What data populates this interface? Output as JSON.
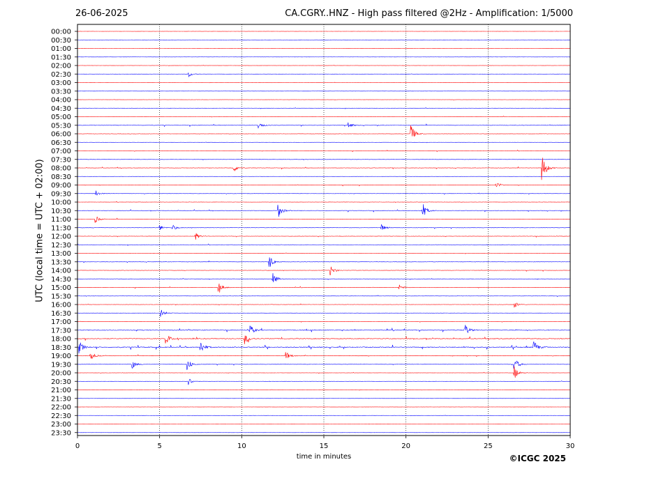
{
  "header": {
    "date": "26-06-2025",
    "title": "CA.CGRY..HNZ - High pass filtered @2Hz - Amplification: 1/5000"
  },
  "footer": {
    "copyright": "©ICGC 2025"
  },
  "chart_data": {
    "type": "line",
    "xlabel": "time in minutes",
    "ylabel": "UTC (local time = UTC + 02:00)",
    "xlim": [
      0,
      30
    ],
    "x_ticks": [
      0,
      5,
      10,
      15,
      20,
      25,
      30
    ],
    "grid": "vertical dotted lines every 5 minutes",
    "trace_colors": [
      "#ff0000",
      "#0000ff"
    ],
    "rows": [
      "00:00",
      "00:30",
      "01:00",
      "01:30",
      "02:00",
      "02:30",
      "03:00",
      "03:30",
      "04:00",
      "04:30",
      "05:00",
      "05:30",
      "06:00",
      "06:30",
      "07:00",
      "07:30",
      "08:00",
      "08:30",
      "09:00",
      "09:30",
      "10:00",
      "10:30",
      "11:00",
      "11:30",
      "12:00",
      "12:30",
      "13:00",
      "13:30",
      "14:00",
      "14:30",
      "15:00",
      "15:30",
      "16:00",
      "16:30",
      "17:00",
      "17:30",
      "18:00",
      "18:30",
      "19:00",
      "19:30",
      "20:00",
      "20:30",
      "21:00",
      "21:30",
      "22:00",
      "22:30",
      "23:00",
      "23:30"
    ],
    "activity": [
      0.2,
      0.2,
      0.2,
      0.2,
      0.3,
      0.3,
      0.3,
      0.4,
      0.5,
      0.5,
      0.6,
      1.0,
      0.7,
      0.5,
      0.7,
      0.8,
      0.9,
      0.5,
      0.8,
      0.6,
      0.6,
      1.0,
      0.8,
      0.8,
      0.8,
      0.7,
      0.5,
      0.8,
      0.8,
      0.9,
      0.8,
      0.6,
      0.6,
      0.6,
      0.7,
      1.6,
      1.8,
      2.0,
      1.2,
      0.8,
      0.5,
      0.5,
      0.4,
      0.4,
      0.3,
      0.3,
      0.2,
      0.2
    ],
    "events": [
      {
        "row": "02:30",
        "t": 6.8,
        "amp": 4
      },
      {
        "row": "05:30",
        "t": 11.0,
        "amp": 6
      },
      {
        "row": "05:30",
        "t": 16.5,
        "amp": 5
      },
      {
        "row": "06:00",
        "t": 20.3,
        "amp": 14
      },
      {
        "row": "08:00",
        "t": 9.5,
        "amp": 6
      },
      {
        "row": "08:00",
        "t": 28.3,
        "amp": 20
      },
      {
        "row": "09:00",
        "t": 25.5,
        "amp": 5
      },
      {
        "row": "09:30",
        "t": 1.1,
        "amp": 5
      },
      {
        "row": "10:30",
        "t": 12.2,
        "amp": 12
      },
      {
        "row": "10:30",
        "t": 21.0,
        "amp": 12
      },
      {
        "row": "11:00",
        "t": 1.1,
        "amp": 5
      },
      {
        "row": "11:30",
        "t": 5.0,
        "amp": 4
      },
      {
        "row": "11:30",
        "t": 5.8,
        "amp": 4
      },
      {
        "row": "11:30",
        "t": 18.5,
        "amp": 5
      },
      {
        "row": "12:00",
        "t": 7.2,
        "amp": 5
      },
      {
        "row": "13:30",
        "t": 11.7,
        "amp": 10
      },
      {
        "row": "14:00",
        "t": 15.4,
        "amp": 8
      },
      {
        "row": "14:30",
        "t": 11.9,
        "amp": 9
      },
      {
        "row": "15:00",
        "t": 8.6,
        "amp": 8
      },
      {
        "row": "15:00",
        "t": 19.6,
        "amp": 4
      },
      {
        "row": "16:00",
        "t": 26.6,
        "amp": 5
      },
      {
        "row": "16:30",
        "t": 5.1,
        "amp": 6
      },
      {
        "row": "17:30",
        "t": 23.6,
        "amp": 9
      },
      {
        "row": "17:30",
        "t": 10.5,
        "amp": 8
      },
      {
        "row": "18:00",
        "t": 10.2,
        "amp": 8
      },
      {
        "row": "18:00",
        "t": 5.4,
        "amp": 8
      },
      {
        "row": "18:30",
        "t": 7.5,
        "amp": 10
      },
      {
        "row": "18:30",
        "t": 0.1,
        "amp": 9
      },
      {
        "row": "18:30",
        "t": 27.8,
        "amp": 9
      },
      {
        "row": "19:00",
        "t": 0.8,
        "amp": 6
      },
      {
        "row": "19:00",
        "t": 12.7,
        "amp": 6
      },
      {
        "row": "19:30",
        "t": 6.7,
        "amp": 9
      },
      {
        "row": "19:30",
        "t": 3.3,
        "amp": 7
      },
      {
        "row": "19:30",
        "t": 26.6,
        "amp": 10
      },
      {
        "row": "20:00",
        "t": 26.6,
        "amp": 10
      },
      {
        "row": "20:30",
        "t": 6.8,
        "amp": 5
      }
    ]
  }
}
